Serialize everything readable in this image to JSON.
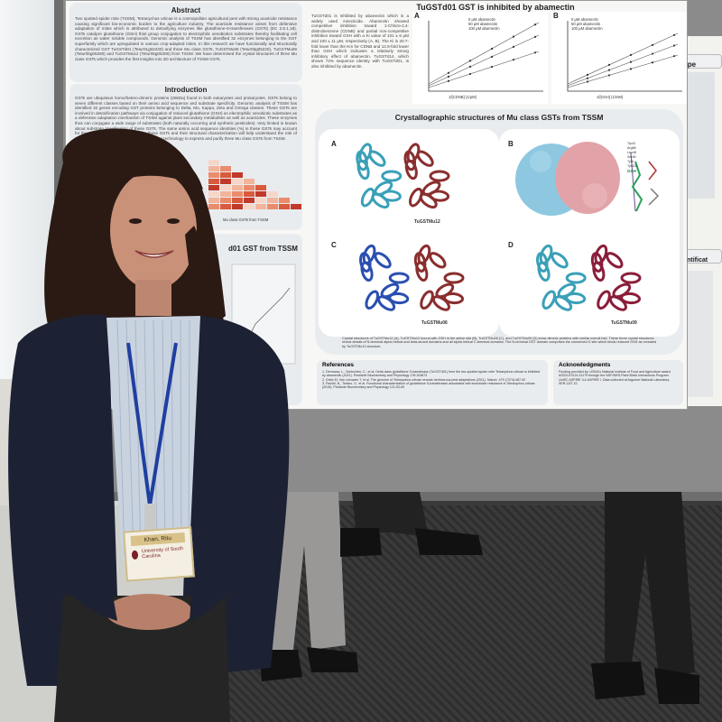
{
  "poster": {
    "abstract": {
      "title": "Abstract",
      "text": "Two spotted spider mite (TSSM), Tetranychus urticae is a cosmopolitan agricultural pest with strong acaricide resistance causing significant bio-economic burden to the agriculture industry. The acaricide resistance arises from defensive adaptation of mites which is attributed to detoxifying enzymes like glutathione-S-transferases (GSTs) (EC 2.5.1.18). GSTs catalyze glutathione (GSH) thiol group conjugation to electrophilic xenobiotics substrates thereby facilitating cell excretion as water soluble compounds. Genomic analysis of TSSM has identified 32 enzymes belonging to the GST superfamily which are upregulated in various crop-adapted mites. In this research we have functionally and structurally characterized GST TuGSTd01 (Tetur01g02230) and three Mu class GSTs, TuGSTMu06 (Tetur05g05220), TuGSTMu09 (Tetur05g05260) and TuGSTMu12 (Tetur05g05300) from TSSM. We have determined the crystal structures of three Mu class GSTs which provides the first insights into 3D architecture of TSSM GSTs."
    },
    "introduction": {
      "title": "Introduction",
      "text": "GSTs are ubiquitous homo/hetero-dimeric proteins (26kDa) found in both eukaryotes and prokaryotes. GSTs belong to seven different classes based on their amino acid sequence and substrate specificity. Genomic analysis of TSSM has identified 32 genes encoding GST proteins belonging to Delta, Mu, Kappa, Zeta and Omega classes. These GSTs are involved in detoxification pathways via conjugation of reduced glutathione (GSH) on electrophilic xenobiotic substrates as a defensive adaptation mechanism of TSSM against plant secondary metabolites as well as acaricides. These enzymes thus can conjugate a wide range of substrates (both naturally occurring and synthetic pesticides). Very limited is known about substrate specification of these GSTs. The same amino acid sequence identities (%) in these GSTs may account for the varied substrate preference for these GSTs and their structural characterization will help understand the role of these proteins, we have used recombinant DNA technology to express and purify three Mu class GSTs from TSSM.",
      "figure_caption": "Mu class GSTs from TSSM"
    },
    "section_d01_title": "d01 GST from TSSM",
    "inhibition": {
      "title": "TuGSTd01 GST is inhibited by abamectin",
      "text": "TuGSTd01 is inhibited by abamectin which is a widely used insecticide. Abamectin showed competitive inhibition toward 1-Chloro-2,4-dinitrobenzene (CDNB) and partial non-competitive inhibition toward GSH with a Ki value of 101 ± 6 μM and 100 ± 11 μM, respectively (A, B). The Ki is 20.7-fold lower than the Km for CDNB and 12.6-fold lower than GSH which indicates a relatively strong inhibitory effect of abamectin. TuGSTd14, which shows 74% sequence identity with TuGSTd01, is also inhibited by abamectin.",
      "plots": [
        {
          "letter": "A",
          "xlabel": "1/[CDNB] (1/μM)",
          "ylabel": "1/V (1/μM)",
          "legend": [
            "0 μM abamectin",
            "50 μM abamectin",
            "100 μM abamectin"
          ]
        },
        {
          "letter": "B",
          "xlabel": "1/[GSH] (1/mM)",
          "ylabel": "1/V (1/μM)",
          "legend": [
            "0 μM abamectin",
            "50 μM abamectin",
            "100 μM abamectin"
          ]
        }
      ]
    },
    "crystal": {
      "title": "Crystallographic structures of Mu class GSTs from TSSM",
      "panels": [
        {
          "letter": "A",
          "label": "TuGSTMu12"
        },
        {
          "letter": "B",
          "label": ""
        },
        {
          "letter": "C",
          "label": "TuGSTMu06"
        },
        {
          "letter": "D",
          "label": "TuGSTMu09"
        }
      ],
      "ligand_labels": [
        "Trp42",
        "Arg86",
        "Leu48",
        "Ser84",
        "Tyr6",
        "Tyr115",
        "GSH"
      ],
      "caption": "Crystal structures of TuGSTMu12 (A), TuGSTMu12 bound with GSH in the active site (B), TuGSTMu06 (C), and TuGSTMu09 (D) show dimeric proteins with similar overall fold. These three crystal structures reveal details of N-terminal alpha helical and beta-strand domains and all alpha helical C-terminal domains. The N-terminal GST domain comprises the conserved G site which binds reduced GSH as revealed by TuGSTMu12 structure."
    },
    "references": {
      "title": "References",
      "items": [
        "1. Dermauw, L., Schiechter, C., et al. Delta class glutathione S-transferase (TuGSTd01) from the two spotted spider mite Tetranychus urticae is inhibited by abamectin (2021). Pesticide Biochemistry and Physiology 176:104873",
        "2. Grbić M, Van Leeuwen T, et al. The genome of Tetranychus urticae reveals herbivorous pest adaptations (2011). Nature. 479 (7374):487-92",
        "3. Pavlidi, N., Tseliou, V., et al. Functional characterization of glutathione S-transferases associated with insecticide resistance in Tetranychus urticae (2015). Pesticide Biochemistry and Physiology 121:53-60"
      ]
    },
    "acknowledgments": {
      "title": "Acknowledgments",
      "text": "Funding provided by: USDA's National Institute of Food and Agriculture award #2020-67014-31179 through the NSF/NIFA Plant Biotic Interactions Program. UofSC ASPIRE II & ASPIRE I. Data collected at Argonne National Laboratory SER-CAT 22."
    },
    "right_poster": {
      "title": "Type",
      "section": "Identificat"
    }
  },
  "badge": {
    "name": "Khan, Ritu",
    "affiliation": "University of South Carolina"
  },
  "colors": {
    "jacket": "#1c2233",
    "shirt": "#c9d3e0",
    "lanyard": "#1f3fa0",
    "hair": "#2b1a14",
    "teal": "#3aa0b8",
    "blue": "#2b4fb0",
    "maroon": "#8a2e2e",
    "pink": "#e5a0a8"
  }
}
